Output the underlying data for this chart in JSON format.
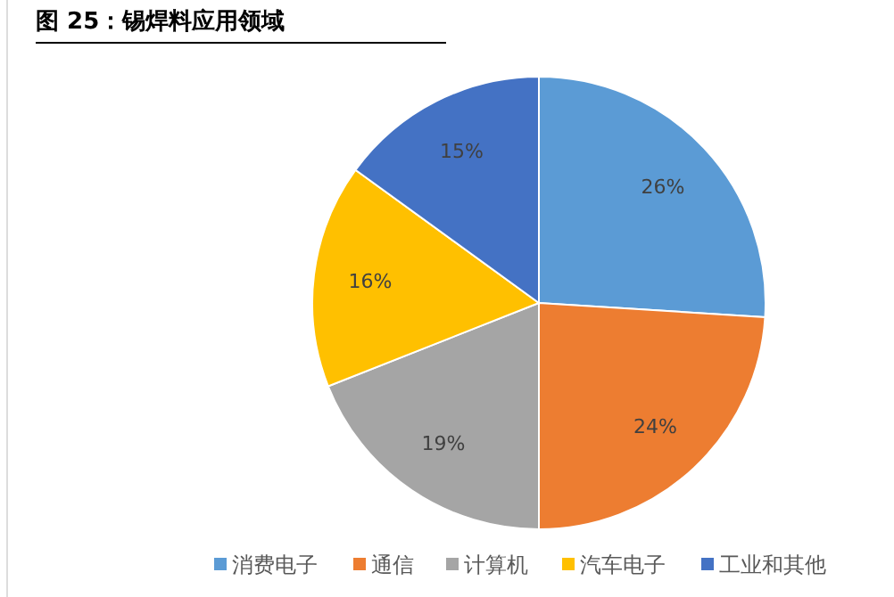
{
  "chart_data": {
    "type": "pie",
    "title": "图 25：锡焊料应用领域",
    "categories": [
      "消费电子",
      "通信",
      "计算机",
      "汽车电子",
      "工业和其他"
    ],
    "values": [
      26,
      24,
      19,
      16,
      15
    ],
    "colors": [
      "#5b9bd5",
      "#ed7d31",
      "#a5a5a5",
      "#ffc000",
      "#4472c4"
    ],
    "value_labels": [
      "26%",
      "24%",
      "19%",
      "16%",
      "15%"
    ],
    "legend": "bottom"
  }
}
